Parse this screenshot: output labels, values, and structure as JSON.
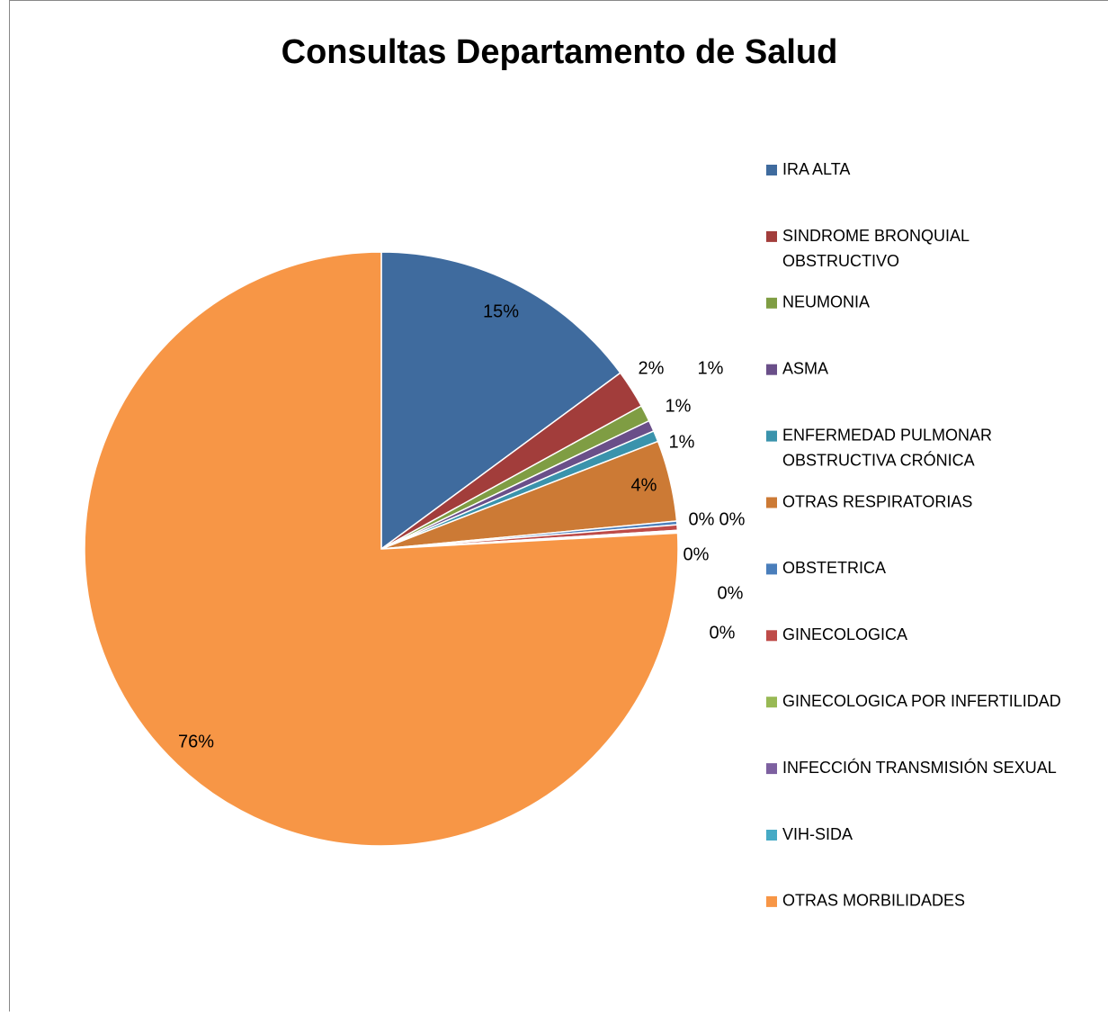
{
  "chart_data": {
    "type": "pie",
    "title": "Consultas Departamento de Salud",
    "categories": [
      "IRA ALTA",
      "SINDROME BRONQUIAL OBSTRUCTIVO",
      "NEUMONIA",
      "ASMA",
      "ENFERMEDAD PULMONAR OBSTRUCTIVA CRÓNICA",
      "OTRAS RESPIRATORIAS",
      "OBSTETRICA",
      "GINECOLOGICA",
      "GINECOLOGICA POR INFERTILIDAD",
      "INFECCIÓN TRANSMISIÓN SEXUAL",
      "VIH-SIDA",
      "OTRAS MORBILIDADES"
    ],
    "values": [
      14.9,
      2.1,
      0.9,
      0.6,
      0.6,
      4.4,
      0.2,
      0.3,
      0.05,
      0.05,
      0.05,
      75.85
    ],
    "value_labels": [
      "15%",
      "2%",
      "1%",
      "1%",
      "1%",
      "4%",
      "0%",
      "0%",
      "0%",
      "0%",
      "0%",
      "76%"
    ],
    "colors": [
      "#3F6B9E",
      "#A23D3B",
      "#7F9D43",
      "#6A4F89",
      "#3A93AC",
      "#CC7A35",
      "#4A7EBB",
      "#BE4B48",
      "#98B954",
      "#7D60A0",
      "#46AAC5",
      "#F79646"
    ],
    "legend": "right"
  }
}
